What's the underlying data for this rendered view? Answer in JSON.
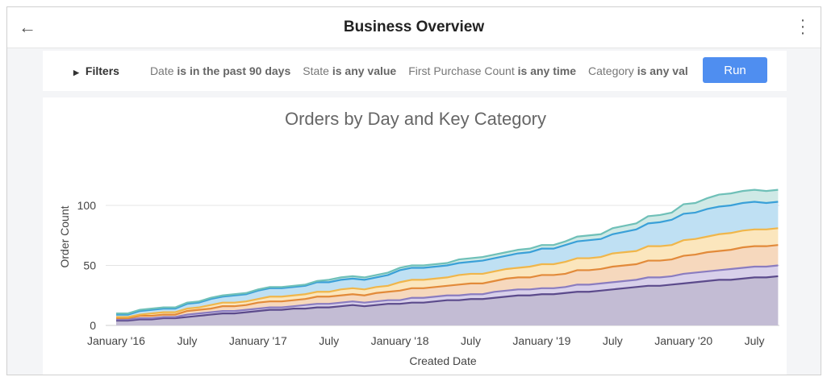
{
  "header": {
    "title": "Business Overview",
    "back_icon": "arrow-left-icon",
    "menu_icon": "kebab-icon"
  },
  "filters": {
    "label": "Filters",
    "items": [
      {
        "field": "Date",
        "cond": "is in the past 90 days"
      },
      {
        "field": "State",
        "cond": "is any value"
      },
      {
        "field": "First Purchase Count",
        "cond": "is any time"
      },
      {
        "field": "Category",
        "cond": "is any val"
      }
    ],
    "run_label": "Run",
    "run_color": "#4f8ef0"
  },
  "chart_data": {
    "type": "area",
    "stacked": true,
    "title": "Orders by Day and Key Category",
    "xlabel": "Created Date",
    "ylabel": "Order Count",
    "ylim": [
      0,
      145
    ],
    "yticks": [
      0,
      50,
      100
    ],
    "grid": true,
    "xticks": [
      "January '16",
      "July",
      "January '17",
      "July",
      "January '18",
      "July",
      "January '19",
      "July",
      "January '20",
      "July"
    ],
    "x_start": "2016-01",
    "x_step": "month",
    "series": [
      {
        "color": "#5b4a8b",
        "fill": "#c3bcd4",
        "values": [
          4,
          4,
          5,
          5,
          6,
          6,
          7,
          8,
          9,
          10,
          10,
          11,
          12,
          13,
          13,
          14,
          14,
          15,
          15,
          16,
          17,
          16,
          17,
          18,
          18,
          19,
          19,
          20,
          21,
          21,
          22,
          22,
          23,
          24,
          25,
          25,
          26,
          26,
          27,
          28,
          28,
          29,
          30,
          31,
          32,
          33,
          33,
          34,
          35,
          36,
          37,
          38,
          38,
          39,
          40,
          40,
          41
        ]
      },
      {
        "color": "#8a7cc0",
        "fill": "#d8d0ea",
        "values": [
          1,
          1,
          1,
          1,
          1,
          1,
          2,
          2,
          2,
          2,
          2,
          2,
          2,
          2,
          2,
          2,
          3,
          3,
          3,
          3,
          3,
          3,
          3,
          3,
          3,
          4,
          4,
          4,
          4,
          4,
          4,
          4,
          5,
          5,
          5,
          5,
          5,
          5,
          5,
          6,
          6,
          6,
          6,
          6,
          6,
          7,
          7,
          7,
          8,
          8,
          8,
          8,
          9,
          9,
          9,
          9,
          9
        ]
      },
      {
        "color": "#e28a3a",
        "fill": "#f6d8bd",
        "values": [
          1,
          1,
          2,
          2,
          2,
          2,
          3,
          3,
          3,
          4,
          4,
          4,
          5,
          5,
          5,
          5,
          5,
          6,
          6,
          6,
          6,
          6,
          7,
          7,
          8,
          8,
          8,
          8,
          8,
          9,
          9,
          9,
          9,
          10,
          10,
          10,
          11,
          11,
          11,
          12,
          12,
          12,
          13,
          13,
          13,
          14,
          14,
          14,
          15,
          15,
          16,
          16,
          16,
          17,
          17,
          17,
          17
        ]
      },
      {
        "color": "#f0b64a",
        "fill": "#fbe6bd",
        "values": [
          1,
          1,
          1,
          2,
          2,
          2,
          2,
          2,
          3,
          3,
          3,
          3,
          3,
          4,
          4,
          4,
          4,
          4,
          4,
          5,
          5,
          5,
          5,
          5,
          7,
          7,
          7,
          7,
          7,
          8,
          8,
          8,
          8,
          8,
          8,
          9,
          9,
          9,
          10,
          10,
          10,
          10,
          11,
          11,
          11,
          12,
          12,
          12,
          13,
          13,
          13,
          14,
          14,
          14,
          14,
          14,
          14
        ]
      },
      {
        "color": "#3aa0d8",
        "fill": "#bfe0f3",
        "values": [
          2,
          2,
          3,
          3,
          3,
          3,
          4,
          4,
          5,
          5,
          6,
          6,
          7,
          7,
          7,
          7,
          7,
          8,
          8,
          8,
          8,
          8,
          8,
          9,
          10,
          10,
          10,
          10,
          10,
          10,
          10,
          11,
          11,
          11,
          12,
          12,
          13,
          13,
          14,
          14,
          15,
          15,
          16,
          17,
          18,
          19,
          20,
          21,
          22,
          22,
          23,
          23,
          23,
          23,
          23,
          22,
          22
        ]
      },
      {
        "color": "#6fc0b8",
        "fill": "#cfe9e6",
        "values": [
          1,
          1,
          1,
          1,
          1,
          1,
          1,
          1,
          1,
          1,
          1,
          1,
          1,
          1,
          1,
          1,
          1,
          1,
          2,
          2,
          2,
          2,
          2,
          2,
          2,
          2,
          2,
          2,
          2,
          3,
          3,
          3,
          3,
          3,
          3,
          3,
          3,
          3,
          3,
          4,
          4,
          4,
          5,
          5,
          5,
          6,
          6,
          6,
          8,
          8,
          9,
          10,
          10,
          10,
          10,
          10,
          10
        ]
      }
    ]
  }
}
